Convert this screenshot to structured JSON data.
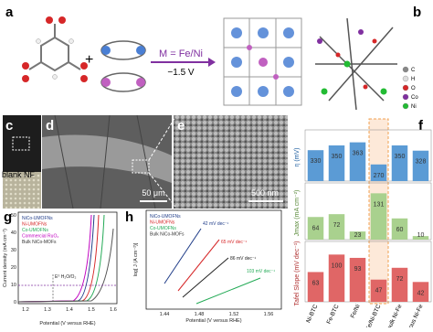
{
  "panel_a": {
    "label": "a",
    "equation": "M = Fe/Ni",
    "voltage": "−1.5 V"
  },
  "panel_b": {
    "label": "b",
    "legend": [
      "C",
      "H",
      "O",
      "Co",
      "Ni"
    ]
  },
  "panel_c": {
    "label": "c",
    "text": "blank NF"
  },
  "panel_d": {
    "label": "d",
    "scale": "50 μm"
  },
  "panel_e": {
    "label": "e",
    "scale": "500 nm"
  },
  "chart_data": {
    "type": "bar",
    "label": "f",
    "categories": [
      "Ni-BTC",
      "Fe-BTC",
      "Fe/Ni",
      "Fe/Ni-BTC",
      "bulk Ni-Fe",
      "porous Ni-Fe"
    ],
    "highlight": 3,
    "series": [
      {
        "name": "η (mV)",
        "color": "#5b9bd5",
        "values": [
          330,
          350,
          363,
          270,
          350,
          328
        ],
        "ylim": [
          200,
          400
        ]
      },
      {
        "name": "Jmax (mA cm⁻²)",
        "color": "#a9d18e",
        "values": [
          64,
          72,
          23,
          131,
          60,
          10
        ],
        "ylim": [
          0,
          150
        ]
      },
      {
        "name": "Tafel Slope (mV dec⁻¹)",
        "color": "#e06666",
        "values": [
          63,
          100,
          93,
          47,
          72,
          42
        ],
        "ylim": [
          0,
          120
        ]
      }
    ]
  },
  "panel_g": {
    "label": "g",
    "legend": [
      "NiCo-UMOFNs",
      "Ni-UMOFNs",
      "Co-UMOFNs",
      "Commercial RuO₂",
      "Bulk NiCo-MOFs"
    ],
    "annotation": "E⁰ H₂O/O₂",
    "ylabel": "Current density (mA cm⁻²)",
    "xlabel": "Potential (V versus RHE)",
    "xticks": [
      "1.2",
      "1.3",
      "1.4",
      "1.5",
      "1.6"
    ],
    "yticks": [
      "0",
      "10",
      "20",
      "30",
      "40",
      "50"
    ]
  },
  "panel_h": {
    "label": "h",
    "legend": [
      "NiCo-UMOFNs",
      "Ni-UMOFNs",
      "Co-UMOFNs",
      "Bulk NiCo-MOFs"
    ],
    "annotations": [
      "42 mV dec⁻¹",
      "65 mV dec⁻¹",
      "86 mV dec⁻¹",
      "103 mV dec⁻¹"
    ],
    "ylabel": "log[ J (A cm⁻²)]",
    "xlabel": "Potential (V versus RHE)",
    "xticks": [
      "1.44",
      "1.48",
      "1.52",
      "1.56"
    ]
  }
}
